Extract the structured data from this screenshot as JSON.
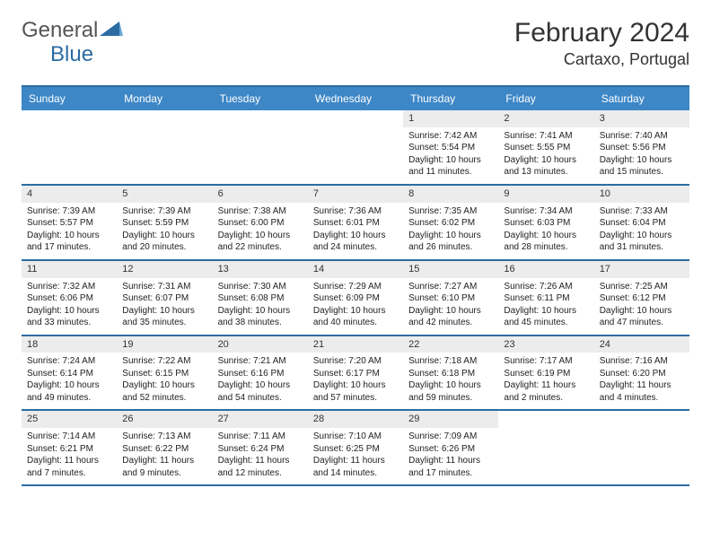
{
  "logo": {
    "text1": "General",
    "text2": "Blue"
  },
  "title": "February 2024",
  "location": "Cartaxo, Portugal",
  "colors": {
    "header_bg": "#3d87c7",
    "header_border": "#2b6ca3",
    "daynum_bg": "#ececec",
    "logo_blue": "#2b6ca3"
  },
  "weekdays": [
    "Sunday",
    "Monday",
    "Tuesday",
    "Wednesday",
    "Thursday",
    "Friday",
    "Saturday"
  ],
  "weeks": [
    [
      null,
      null,
      null,
      null,
      {
        "n": "1",
        "sr": "Sunrise: 7:42 AM",
        "ss": "Sunset: 5:54 PM",
        "dl": "Daylight: 10 hours and 11 minutes."
      },
      {
        "n": "2",
        "sr": "Sunrise: 7:41 AM",
        "ss": "Sunset: 5:55 PM",
        "dl": "Daylight: 10 hours and 13 minutes."
      },
      {
        "n": "3",
        "sr": "Sunrise: 7:40 AM",
        "ss": "Sunset: 5:56 PM",
        "dl": "Daylight: 10 hours and 15 minutes."
      }
    ],
    [
      {
        "n": "4",
        "sr": "Sunrise: 7:39 AM",
        "ss": "Sunset: 5:57 PM",
        "dl": "Daylight: 10 hours and 17 minutes."
      },
      {
        "n": "5",
        "sr": "Sunrise: 7:39 AM",
        "ss": "Sunset: 5:59 PM",
        "dl": "Daylight: 10 hours and 20 minutes."
      },
      {
        "n": "6",
        "sr": "Sunrise: 7:38 AM",
        "ss": "Sunset: 6:00 PM",
        "dl": "Daylight: 10 hours and 22 minutes."
      },
      {
        "n": "7",
        "sr": "Sunrise: 7:36 AM",
        "ss": "Sunset: 6:01 PM",
        "dl": "Daylight: 10 hours and 24 minutes."
      },
      {
        "n": "8",
        "sr": "Sunrise: 7:35 AM",
        "ss": "Sunset: 6:02 PM",
        "dl": "Daylight: 10 hours and 26 minutes."
      },
      {
        "n": "9",
        "sr": "Sunrise: 7:34 AM",
        "ss": "Sunset: 6:03 PM",
        "dl": "Daylight: 10 hours and 28 minutes."
      },
      {
        "n": "10",
        "sr": "Sunrise: 7:33 AM",
        "ss": "Sunset: 6:04 PM",
        "dl": "Daylight: 10 hours and 31 minutes."
      }
    ],
    [
      {
        "n": "11",
        "sr": "Sunrise: 7:32 AM",
        "ss": "Sunset: 6:06 PM",
        "dl": "Daylight: 10 hours and 33 minutes."
      },
      {
        "n": "12",
        "sr": "Sunrise: 7:31 AM",
        "ss": "Sunset: 6:07 PM",
        "dl": "Daylight: 10 hours and 35 minutes."
      },
      {
        "n": "13",
        "sr": "Sunrise: 7:30 AM",
        "ss": "Sunset: 6:08 PM",
        "dl": "Daylight: 10 hours and 38 minutes."
      },
      {
        "n": "14",
        "sr": "Sunrise: 7:29 AM",
        "ss": "Sunset: 6:09 PM",
        "dl": "Daylight: 10 hours and 40 minutes."
      },
      {
        "n": "15",
        "sr": "Sunrise: 7:27 AM",
        "ss": "Sunset: 6:10 PM",
        "dl": "Daylight: 10 hours and 42 minutes."
      },
      {
        "n": "16",
        "sr": "Sunrise: 7:26 AM",
        "ss": "Sunset: 6:11 PM",
        "dl": "Daylight: 10 hours and 45 minutes."
      },
      {
        "n": "17",
        "sr": "Sunrise: 7:25 AM",
        "ss": "Sunset: 6:12 PM",
        "dl": "Daylight: 10 hours and 47 minutes."
      }
    ],
    [
      {
        "n": "18",
        "sr": "Sunrise: 7:24 AM",
        "ss": "Sunset: 6:14 PM",
        "dl": "Daylight: 10 hours and 49 minutes."
      },
      {
        "n": "19",
        "sr": "Sunrise: 7:22 AM",
        "ss": "Sunset: 6:15 PM",
        "dl": "Daylight: 10 hours and 52 minutes."
      },
      {
        "n": "20",
        "sr": "Sunrise: 7:21 AM",
        "ss": "Sunset: 6:16 PM",
        "dl": "Daylight: 10 hours and 54 minutes."
      },
      {
        "n": "21",
        "sr": "Sunrise: 7:20 AM",
        "ss": "Sunset: 6:17 PM",
        "dl": "Daylight: 10 hours and 57 minutes."
      },
      {
        "n": "22",
        "sr": "Sunrise: 7:18 AM",
        "ss": "Sunset: 6:18 PM",
        "dl": "Daylight: 10 hours and 59 minutes."
      },
      {
        "n": "23",
        "sr": "Sunrise: 7:17 AM",
        "ss": "Sunset: 6:19 PM",
        "dl": "Daylight: 11 hours and 2 minutes."
      },
      {
        "n": "24",
        "sr": "Sunrise: 7:16 AM",
        "ss": "Sunset: 6:20 PM",
        "dl": "Daylight: 11 hours and 4 minutes."
      }
    ],
    [
      {
        "n": "25",
        "sr": "Sunrise: 7:14 AM",
        "ss": "Sunset: 6:21 PM",
        "dl": "Daylight: 11 hours and 7 minutes."
      },
      {
        "n": "26",
        "sr": "Sunrise: 7:13 AM",
        "ss": "Sunset: 6:22 PM",
        "dl": "Daylight: 11 hours and 9 minutes."
      },
      {
        "n": "27",
        "sr": "Sunrise: 7:11 AM",
        "ss": "Sunset: 6:24 PM",
        "dl": "Daylight: 11 hours and 12 minutes."
      },
      {
        "n": "28",
        "sr": "Sunrise: 7:10 AM",
        "ss": "Sunset: 6:25 PM",
        "dl": "Daylight: 11 hours and 14 minutes."
      },
      {
        "n": "29",
        "sr": "Sunrise: 7:09 AM",
        "ss": "Sunset: 6:26 PM",
        "dl": "Daylight: 11 hours and 17 minutes."
      },
      null,
      null
    ]
  ]
}
